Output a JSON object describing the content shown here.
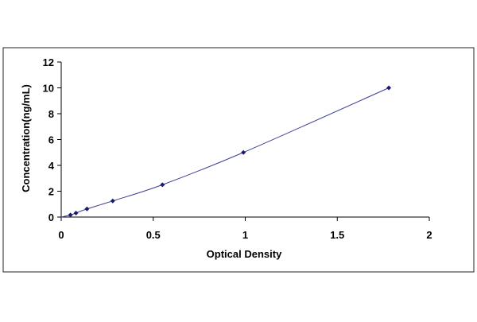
{
  "chart_data": {
    "type": "scatter",
    "title": "",
    "xlabel": "Optical Density",
    "ylabel": "Concentration(ng/mL)",
    "xlim": [
      0,
      2
    ],
    "ylim": [
      0,
      12
    ],
    "xticks": [
      0,
      0.5,
      1,
      1.5,
      2
    ],
    "xtick_labels": [
      "0",
      "0.5",
      "1",
      "1.5",
      "2"
    ],
    "yticks": [
      0,
      2,
      4,
      6,
      8,
      10,
      12
    ],
    "ytick_labels": [
      "0",
      "2",
      "4",
      "6",
      "8",
      "10",
      "12"
    ],
    "grid": false,
    "legend": "none",
    "series": [
      {
        "x": [
          0.05,
          0.08,
          0.14,
          0.28,
          0.55,
          0.99,
          1.78
        ],
        "y": [
          0.16,
          0.31,
          0.63,
          1.25,
          2.5,
          5,
          10
        ],
        "marker": "diamond",
        "color": "#1a1a6e",
        "fit_line": true,
        "fit_color": "#3b3f8f"
      }
    ]
  }
}
